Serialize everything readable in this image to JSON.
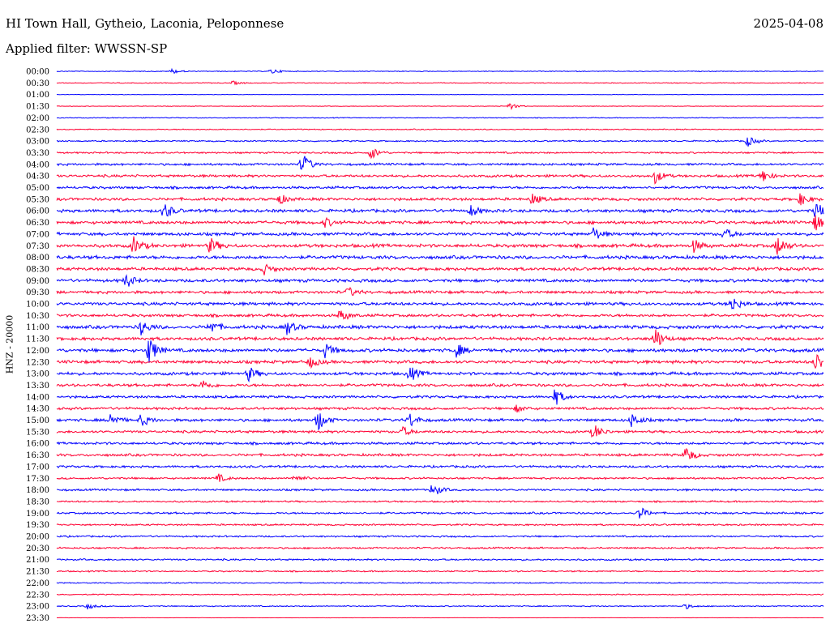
{
  "header": {
    "station": "HI Town Hall, Gytheio, Laconia, Peloponnese",
    "date": "2025-04-08",
    "filter": "Applied filter: WWSSN-SP"
  },
  "axis": {
    "ylabel": "HNZ - 20000"
  },
  "colors": {
    "blue": "#0000ff",
    "red": "#ff0033"
  },
  "chart_data": {
    "type": "line",
    "title": "HI Town Hall, Gytheio, Laconia, Peloponnese",
    "subtitle": "Applied filter: WWSSN-SP",
    "ylabel": "HNZ - 20000",
    "rows": [
      {
        "time": "00:00",
        "color": "blue",
        "noise": 0.15,
        "events": [
          {
            "x": 0.15,
            "a": 0.35
          },
          {
            "x": 0.28,
            "a": 0.35
          }
        ]
      },
      {
        "time": "00:30",
        "color": "red",
        "noise": 0.15,
        "events": [
          {
            "x": 0.23,
            "a": 0.25
          }
        ]
      },
      {
        "time": "01:00",
        "color": "blue",
        "noise": 0.08,
        "events": []
      },
      {
        "time": "01:30",
        "color": "red",
        "noise": 0.1,
        "events": [
          {
            "x": 0.59,
            "a": 0.5
          }
        ]
      },
      {
        "time": "02:00",
        "color": "blue",
        "noise": 0.15,
        "events": []
      },
      {
        "time": "02:30",
        "color": "red",
        "noise": 0.18,
        "events": []
      },
      {
        "time": "03:00",
        "color": "blue",
        "noise": 0.25,
        "events": [
          {
            "x": 0.9,
            "a": 0.8
          }
        ]
      },
      {
        "time": "03:30",
        "color": "red",
        "noise": 0.3,
        "events": [
          {
            "x": 0.41,
            "a": 0.9
          }
        ]
      },
      {
        "time": "04:00",
        "color": "blue",
        "noise": 0.4,
        "events": [
          {
            "x": 0.32,
            "a": 1.6
          }
        ]
      },
      {
        "time": "04:30",
        "color": "red",
        "noise": 0.45,
        "events": [
          {
            "x": 0.78,
            "a": 1.0
          },
          {
            "x": 0.92,
            "a": 0.9
          }
        ]
      },
      {
        "time": "05:00",
        "color": "blue",
        "noise": 0.45,
        "events": []
      },
      {
        "time": "05:30",
        "color": "red",
        "noise": 0.5,
        "events": [
          {
            "x": 0.29,
            "a": 0.7
          },
          {
            "x": 0.62,
            "a": 0.8
          },
          {
            "x": 0.97,
            "a": 0.8
          }
        ]
      },
      {
        "time": "06:00",
        "color": "blue",
        "noise": 0.55,
        "events": [
          {
            "x": 0.14,
            "a": 1.2
          },
          {
            "x": 0.54,
            "a": 0.8
          },
          {
            "x": 0.99,
            "a": 1.2
          }
        ]
      },
      {
        "time": "06:30",
        "color": "red",
        "noise": 0.55,
        "events": [
          {
            "x": 0.35,
            "a": 0.6
          },
          {
            "x": 0.99,
            "a": 1.3
          }
        ]
      },
      {
        "time": "07:00",
        "color": "blue",
        "noise": 0.55,
        "events": [
          {
            "x": 0.7,
            "a": 0.9
          },
          {
            "x": 0.87,
            "a": 0.8
          }
        ]
      },
      {
        "time": "07:30",
        "color": "red",
        "noise": 0.6,
        "events": [
          {
            "x": 0.1,
            "a": 1.2
          },
          {
            "x": 0.2,
            "a": 1.1
          },
          {
            "x": 0.83,
            "a": 0.9
          },
          {
            "x": 0.94,
            "a": 1.4
          }
        ]
      },
      {
        "time": "08:00",
        "color": "blue",
        "noise": 0.6,
        "events": []
      },
      {
        "time": "08:30",
        "color": "red",
        "noise": 0.55,
        "events": [
          {
            "x": 0.27,
            "a": 0.7
          }
        ]
      },
      {
        "time": "09:00",
        "color": "blue",
        "noise": 0.55,
        "events": [
          {
            "x": 0.09,
            "a": 1.0
          }
        ]
      },
      {
        "time": "09:30",
        "color": "red",
        "noise": 0.5,
        "events": [
          {
            "x": 0.38,
            "a": 0.7
          }
        ]
      },
      {
        "time": "10:00",
        "color": "blue",
        "noise": 0.55,
        "events": [
          {
            "x": 0.88,
            "a": 1.1
          }
        ]
      },
      {
        "time": "10:30",
        "color": "red",
        "noise": 0.5,
        "events": [
          {
            "x": 0.37,
            "a": 0.9
          }
        ]
      },
      {
        "time": "11:00",
        "color": "blue",
        "noise": 0.6,
        "events": [
          {
            "x": 0.11,
            "a": 1.0
          },
          {
            "x": 0.2,
            "a": 1.0
          },
          {
            "x": 0.3,
            "a": 1.0
          }
        ]
      },
      {
        "time": "11:30",
        "color": "red",
        "noise": 0.55,
        "events": [
          {
            "x": 0.78,
            "a": 1.6
          }
        ]
      },
      {
        "time": "12:00",
        "color": "blue",
        "noise": 0.6,
        "events": [
          {
            "x": 0.12,
            "a": 2.0
          },
          {
            "x": 0.35,
            "a": 1.0
          },
          {
            "x": 0.52,
            "a": 1.1
          }
        ]
      },
      {
        "time": "12:30",
        "color": "red",
        "noise": 0.55,
        "events": [
          {
            "x": 0.33,
            "a": 0.8
          },
          {
            "x": 0.99,
            "a": 1.4
          }
        ]
      },
      {
        "time": "13:00",
        "color": "blue",
        "noise": 0.55,
        "events": [
          {
            "x": 0.25,
            "a": 1.0
          },
          {
            "x": 0.46,
            "a": 1.1
          }
        ]
      },
      {
        "time": "13:30",
        "color": "red",
        "noise": 0.5,
        "events": [
          {
            "x": 0.19,
            "a": 0.7
          }
        ]
      },
      {
        "time": "14:00",
        "color": "blue",
        "noise": 0.45,
        "events": [
          {
            "x": 0.65,
            "a": 1.2
          }
        ]
      },
      {
        "time": "14:30",
        "color": "red",
        "noise": 0.45,
        "events": [
          {
            "x": 0.6,
            "a": 0.5
          }
        ]
      },
      {
        "time": "15:00",
        "color": "blue",
        "noise": 0.5,
        "events": [
          {
            "x": 0.07,
            "a": 1.0
          },
          {
            "x": 0.11,
            "a": 0.9
          },
          {
            "x": 0.34,
            "a": 1.6
          },
          {
            "x": 0.46,
            "a": 1.0
          },
          {
            "x": 0.75,
            "a": 1.0
          }
        ]
      },
      {
        "time": "15:30",
        "color": "red",
        "noise": 0.45,
        "events": [
          {
            "x": 0.45,
            "a": 0.7
          },
          {
            "x": 0.7,
            "a": 1.1
          }
        ]
      },
      {
        "time": "16:00",
        "color": "blue",
        "noise": 0.45,
        "events": []
      },
      {
        "time": "16:30",
        "color": "red",
        "noise": 0.45,
        "events": [
          {
            "x": 0.82,
            "a": 1.2
          }
        ]
      },
      {
        "time": "17:00",
        "color": "blue",
        "noise": 0.4,
        "events": []
      },
      {
        "time": "17:30",
        "color": "red",
        "noise": 0.35,
        "events": [
          {
            "x": 0.21,
            "a": 0.6
          },
          {
            "x": 0.31,
            "a": 0.5
          }
        ]
      },
      {
        "time": "18:00",
        "color": "blue",
        "noise": 0.35,
        "events": [
          {
            "x": 0.49,
            "a": 1.0
          }
        ]
      },
      {
        "time": "18:30",
        "color": "red",
        "noise": 0.3,
        "events": []
      },
      {
        "time": "19:00",
        "color": "blue",
        "noise": 0.35,
        "events": [
          {
            "x": 0.76,
            "a": 0.9
          }
        ]
      },
      {
        "time": "19:30",
        "color": "red",
        "noise": 0.3,
        "events": []
      },
      {
        "time": "20:00",
        "color": "blue",
        "noise": 0.3,
        "events": []
      },
      {
        "time": "20:30",
        "color": "red",
        "noise": 0.3,
        "events": []
      },
      {
        "time": "21:00",
        "color": "blue",
        "noise": 0.3,
        "events": []
      },
      {
        "time": "21:30",
        "color": "red",
        "noise": 0.25,
        "events": []
      },
      {
        "time": "22:00",
        "color": "blue",
        "noise": 0.2,
        "events": []
      },
      {
        "time": "22:30",
        "color": "red",
        "noise": 0.2,
        "events": []
      },
      {
        "time": "23:00",
        "color": "blue",
        "noise": 0.2,
        "events": [
          {
            "x": 0.04,
            "a": 0.4
          },
          {
            "x": 0.82,
            "a": 0.35
          }
        ]
      },
      {
        "time": "23:30",
        "color": "red",
        "noise": 0.05,
        "events": []
      }
    ]
  }
}
